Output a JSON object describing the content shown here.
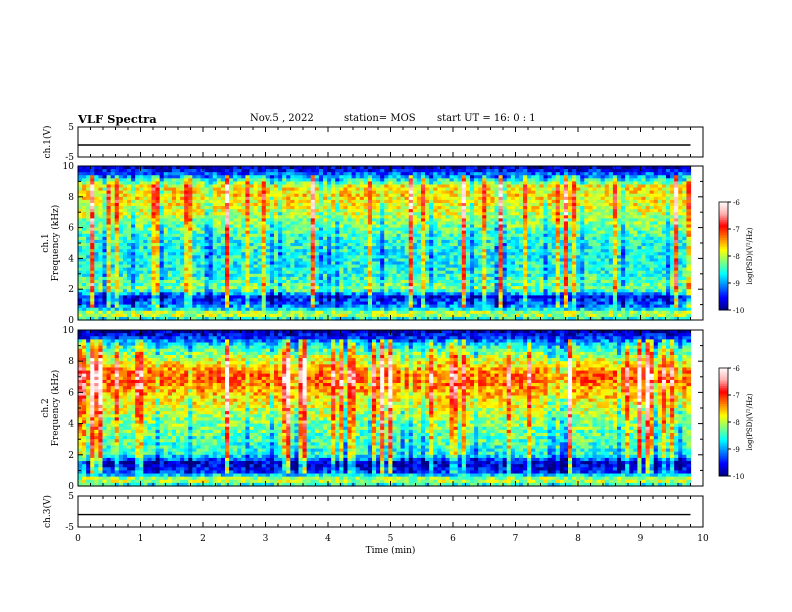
{
  "header": {
    "title": "VLF Spectra",
    "date": "Nov.5  , 2022",
    "station": "station= MOS",
    "start": "start  UT =   16: 0  : 1"
  },
  "colors": {
    "jet": [
      "#00007f",
      "#0000ff",
      "#007fff",
      "#00ffff",
      "#7fff7f",
      "#ffff00",
      "#ff7f00",
      "#ff0000",
      "#ffb0b0",
      "#ffffff"
    ],
    "axis": "#000000"
  },
  "chart_data": [
    {
      "type": "line",
      "panel": "ch1-voltage",
      "ylabel": "ch.1(V)",
      "ylim": [
        -5,
        5
      ],
      "yticks": [
        "5",
        "-5"
      ],
      "xlim": [
        0,
        10
      ],
      "series": [
        {
          "x": [
            0,
            9.8
          ],
          "values": [
            -1,
            -1
          ]
        }
      ]
    },
    {
      "type": "heatmap",
      "panel": "ch1-spectrogram",
      "ylabel": "ch.1",
      "ylabel2": "Frequency (kHz)",
      "ylim": [
        0,
        10
      ],
      "yticks": [
        "0",
        "2",
        "4",
        "6",
        "8",
        "10"
      ],
      "xlim": [
        0,
        10
      ],
      "data_end_min": 9.8,
      "colorbar": {
        "label": "log(PSD)(V²/Hz)",
        "ticks": [
          "-6",
          "-7",
          "-8",
          "-9",
          "-10"
        ],
        "range": [
          -10,
          -6
        ]
      },
      "profile": {
        "freq_khz": [
          0,
          0.4,
          0.8,
          1.5,
          2,
          3,
          4,
          5,
          6,
          7,
          8,
          8.7,
          9.2,
          10
        ],
        "level": [
          0.3,
          0.55,
          0.25,
          0.12,
          0.45,
          0.36,
          0.34,
          0.36,
          0.42,
          0.52,
          0.58,
          0.55,
          0.3,
          0.02
        ]
      }
    },
    {
      "type": "heatmap",
      "panel": "ch2-spectrogram",
      "ylabel": "ch.2",
      "ylabel2": "Frequency (kHz)",
      "ylim": [
        0,
        10
      ],
      "yticks": [
        "0",
        "2",
        "4",
        "6",
        "8",
        "10"
      ],
      "xlim": [
        0,
        10
      ],
      "data_end_min": 9.8,
      "colorbar": {
        "label": "log(PSD)(V²/Hz)",
        "ticks": [
          "-6",
          "-7",
          "-8",
          "-9",
          "-10"
        ],
        "range": [
          -10,
          -6
        ]
      },
      "profile": {
        "freq_khz": [
          0,
          0.4,
          0.9,
          1.5,
          2,
          3,
          4,
          5,
          6,
          7,
          8,
          9,
          9.5,
          10
        ],
        "level": [
          0.3,
          0.55,
          0.15,
          0.08,
          0.35,
          0.4,
          0.45,
          0.52,
          0.62,
          0.72,
          0.55,
          0.35,
          0.15,
          0.02
        ]
      }
    },
    {
      "type": "line",
      "panel": "ch3-voltage",
      "ylabel": "ch.3(V)",
      "ylim": [
        -5,
        5
      ],
      "yticks": [
        "5",
        "-5"
      ],
      "xlim": [
        0,
        10
      ],
      "xlabel": "Time  (min)",
      "xticks": [
        "0",
        "1",
        "2",
        "3",
        "4",
        "5",
        "6",
        "7",
        "8",
        "9",
        "10"
      ],
      "series": [
        {
          "x": [
            0,
            9.8
          ],
          "values": [
            -1,
            -1
          ]
        }
      ]
    }
  ]
}
